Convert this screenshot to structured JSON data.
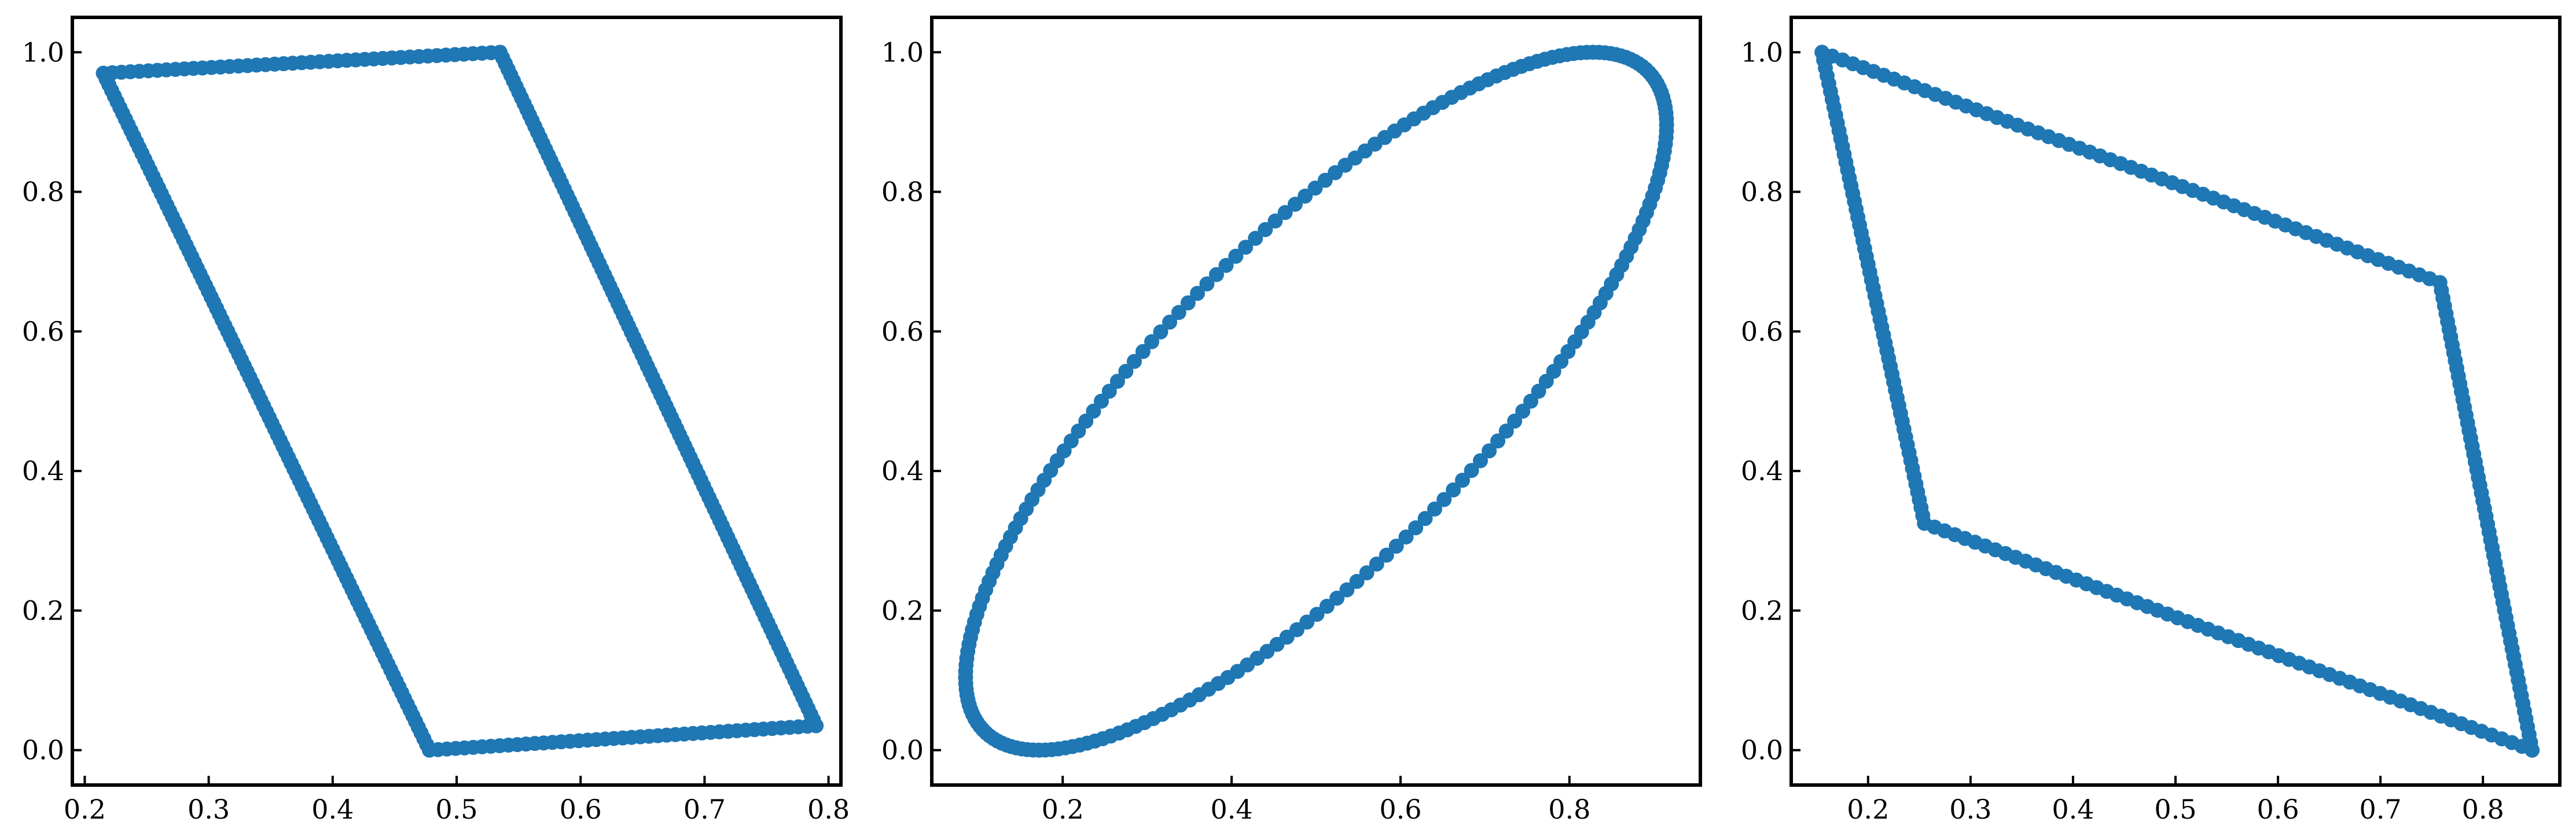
{
  "chart_data": [
    {
      "type": "scatter",
      "title": "",
      "xlabel": "",
      "ylabel": "",
      "xlim": [
        0.19,
        0.81
      ],
      "ylim": [
        -0.05,
        1.05
      ],
      "xticks": [
        "0.2",
        "0.3",
        "0.4",
        "0.5",
        "0.6",
        "0.7",
        "0.8"
      ],
      "yticks": [
        "0.0",
        "0.2",
        "0.4",
        "0.6",
        "0.8",
        "1.0"
      ],
      "grid": false,
      "marker_color": "#1f77b4",
      "shape": "parallelogram outline",
      "vertices": [
        [
          0.215,
          0.97
        ],
        [
          0.535,
          1.0
        ],
        [
          0.79,
          0.035
        ],
        [
          0.478,
          0.0
        ]
      ],
      "points_per_edge": [
        44,
        118,
        44,
        118
      ]
    },
    {
      "type": "scatter",
      "title": "",
      "xlabel": "",
      "ylabel": "",
      "xlim": [
        0.045,
        0.955
      ],
      "ylim": [
        -0.05,
        1.05
      ],
      "xticks": [
        "0.2",
        "0.4",
        "0.6",
        "0.8"
      ],
      "yticks": [
        "0.0",
        "0.2",
        "0.4",
        "0.6",
        "0.8",
        "1.0"
      ],
      "grid": false,
      "marker_color": "#1f77b4",
      "shape": "tilted ellipse outline",
      "ellipse": {
        "center": [
          0.5,
          0.5
        ],
        "extent_x": [
          0.085,
          0.915
        ],
        "extent_y": [
          0.0,
          1.0
        ],
        "top_point": [
          0.828,
          1.0
        ],
        "bottom_point": [
          0.172,
          0.0
        ]
      },
      "points": 220
    },
    {
      "type": "scatter",
      "title": "",
      "xlabel": "",
      "ylabel": "",
      "xlim": [
        0.125,
        0.875
      ],
      "ylim": [
        -0.05,
        1.05
      ],
      "xticks": [
        "0.2",
        "0.3",
        "0.4",
        "0.5",
        "0.6",
        "0.7",
        "0.8"
      ],
      "yticks": [
        "0.0",
        "0.2",
        "0.4",
        "0.6",
        "0.8",
        "1.0"
      ],
      "grid": false,
      "marker_color": "#1f77b4",
      "shape": "rhombus outline",
      "vertices": [
        [
          0.155,
          1.0
        ],
        [
          0.758,
          0.67
        ],
        [
          0.848,
          0.0
        ],
        [
          0.255,
          0.325
        ]
      ],
      "points_per_edge": [
        60,
        60,
        60,
        60
      ]
    }
  ]
}
